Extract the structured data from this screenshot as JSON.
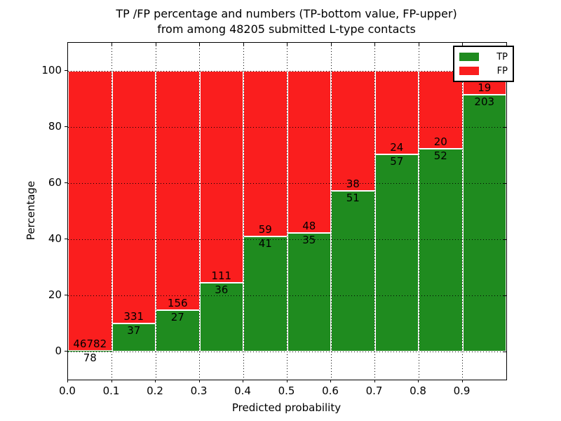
{
  "title": {
    "line1": "TP /FP percentage and numbers (TP-bottom value, FP-upper)",
    "line2": "from among 48205 submitted L-type contacts"
  },
  "axes": {
    "xlabel": "Predicted probability",
    "ylabel": "Percentage",
    "x_tick_labels": [
      "0.0",
      "0.1",
      "0.2",
      "0.3",
      "0.4",
      "0.5",
      "0.6",
      "0.7",
      "0.8",
      "0.9"
    ],
    "y_tick_labels": [
      "0",
      "20",
      "40",
      "60",
      "80",
      "100"
    ],
    "y_tick_values": [
      0,
      20,
      40,
      60,
      80,
      100
    ]
  },
  "legend": {
    "entries": [
      {
        "label": "TP",
        "color": "#1f8b1f"
      },
      {
        "label": "FP",
        "color": "#fa1e1e"
      }
    ]
  },
  "colors": {
    "tp": "#1f8b1f",
    "fp": "#fa1e1e",
    "grid": "#000000",
    "spine": "#000000"
  },
  "chart_data": {
    "type": "bar",
    "stacked": true,
    "title": "TP /FP percentage and numbers (TP-bottom value, FP-upper) from among 48205 submitted L-type contacts",
    "xlabel": "Predicted probability",
    "ylabel": "Percentage",
    "total_submitted": 48205,
    "bin_starts": [
      0.0,
      0.1,
      0.2,
      0.3,
      0.4,
      0.5,
      0.6,
      0.7,
      0.8,
      0.9
    ],
    "bin_width": 0.1,
    "xlim": [
      0.0,
      1.0
    ],
    "ylim": [
      -10,
      110
    ],
    "grid": true,
    "legend_position": "upper right",
    "series": [
      {
        "name": "TP",
        "color": "#1f8b1f",
        "counts": [
          78,
          37,
          27,
          36,
          41,
          35,
          51,
          57,
          52,
          203
        ]
      },
      {
        "name": "FP",
        "color": "#fa1e1e",
        "counts": [
          46782,
          331,
          156,
          111,
          59,
          48,
          38,
          24,
          20,
          19
        ]
      }
    ],
    "tp_percent_of_bin": [
      0.17,
      10.05,
      14.75,
      24.49,
      41.0,
      42.17,
      57.3,
      70.37,
      72.22,
      91.44
    ]
  }
}
